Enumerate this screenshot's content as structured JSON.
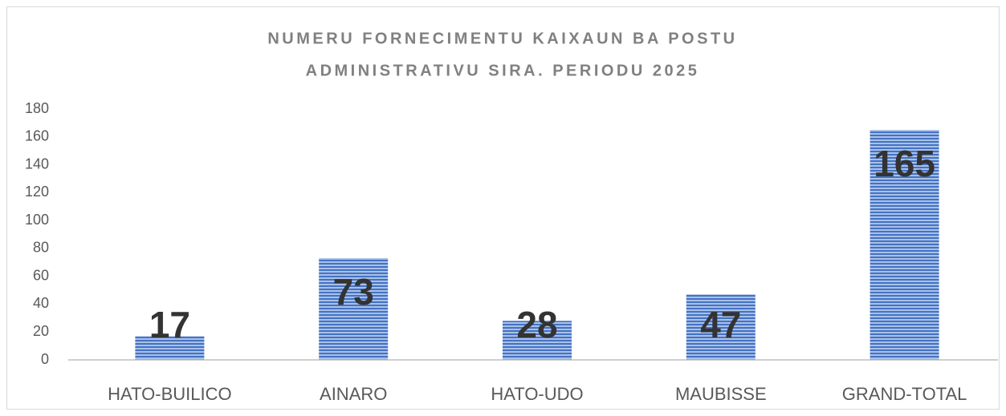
{
  "chart_data": {
    "type": "bar",
    "title": [
      "NUMERU FORNECIMENTU KAIXAUN BA POSTU",
      "ADMINISTRATIVU SIRA. PERIODU 2025"
    ],
    "categories": [
      "HATO-BUILICO",
      "AINARO",
      "HATO-UDO",
      "MAUBISSE",
      "GRAND-TOTAL"
    ],
    "values": [
      17,
      73,
      28,
      47,
      165
    ],
    "color": "#4472c4",
    "ylim": [
      0,
      180
    ],
    "yticks": [
      0,
      20,
      40,
      60,
      80,
      100,
      120,
      140,
      160,
      180
    ],
    "grid": false
  }
}
